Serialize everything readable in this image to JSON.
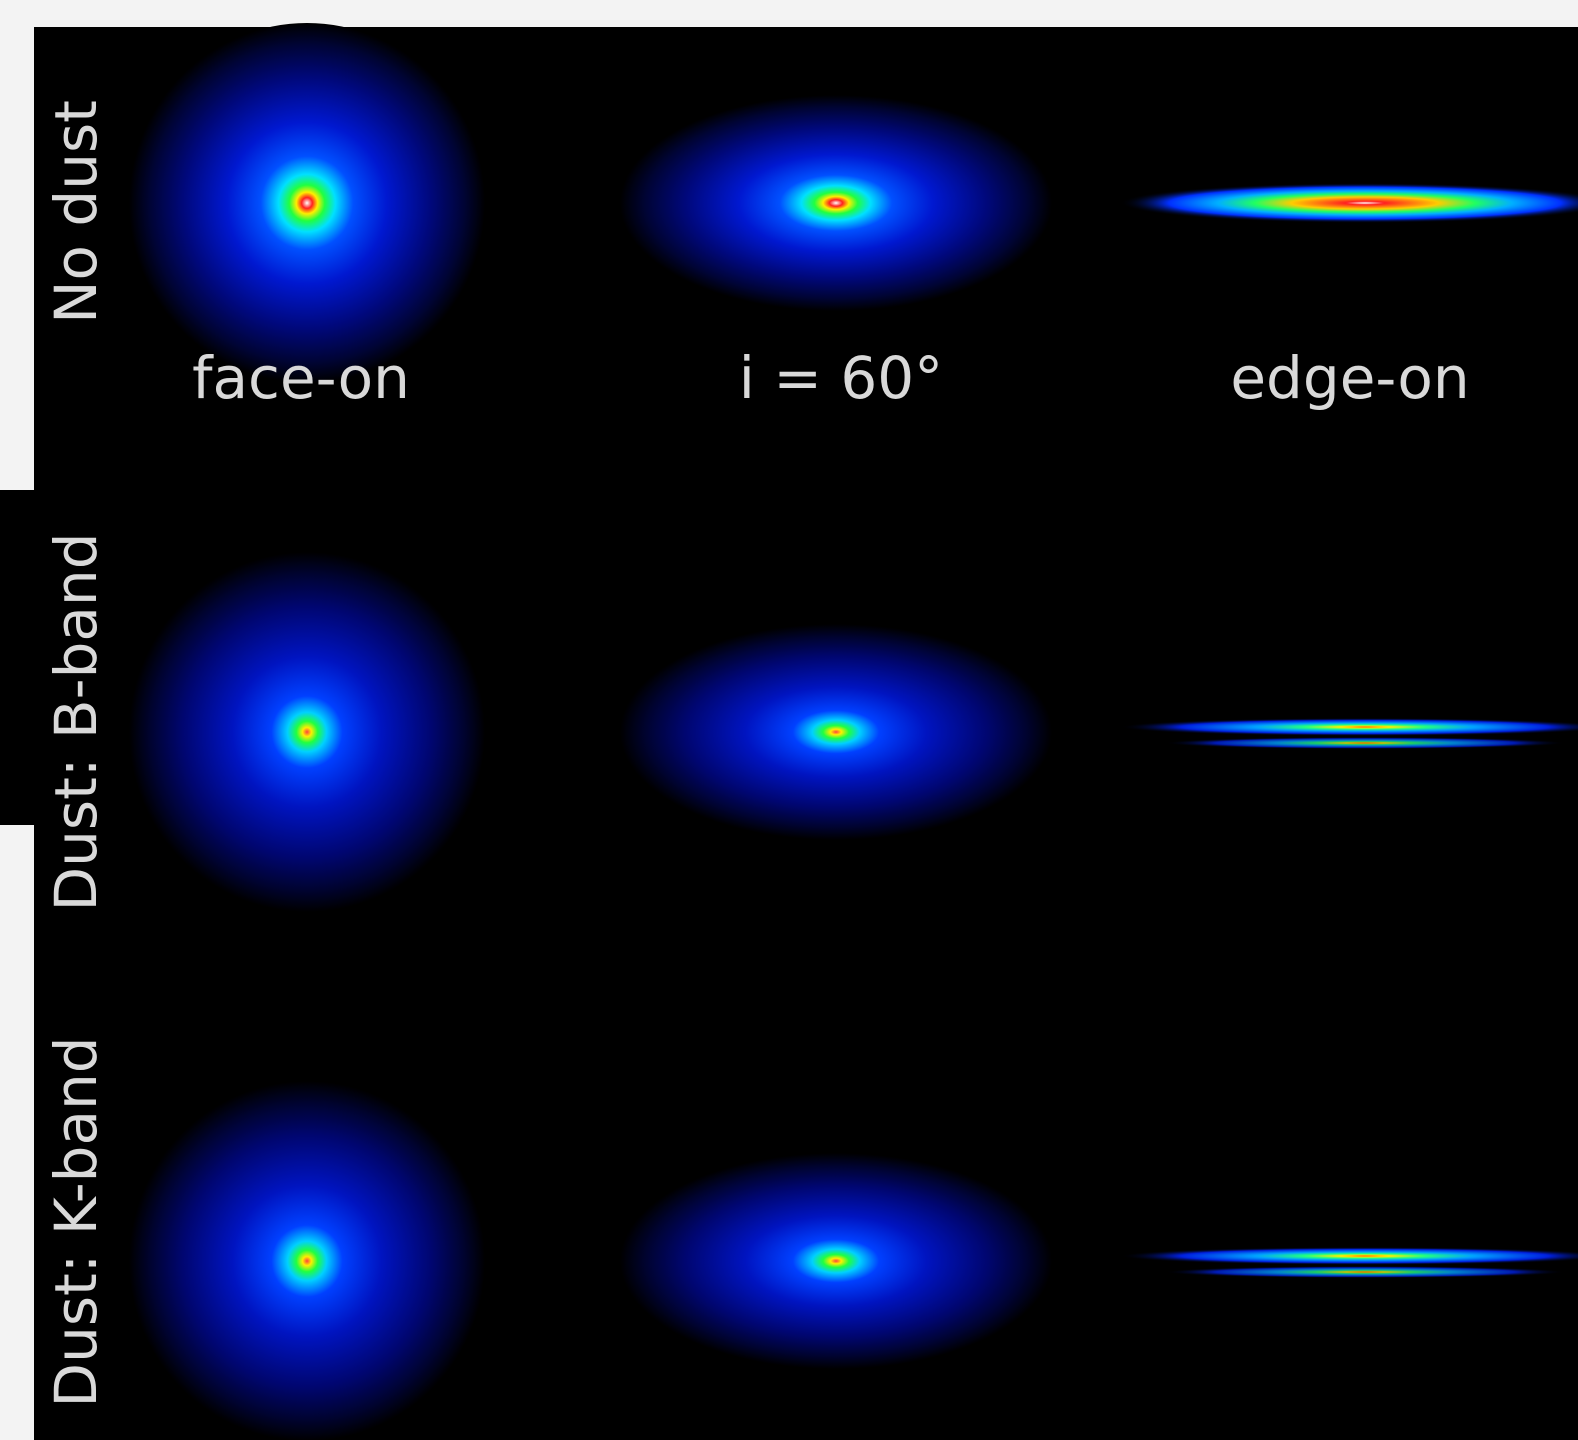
{
  "row_labels": [
    "No dust",
    "Dust: B-band",
    "Dust: K-band"
  ],
  "column_labels": [
    "face-on",
    "i = 60°",
    "edge-on"
  ]
}
